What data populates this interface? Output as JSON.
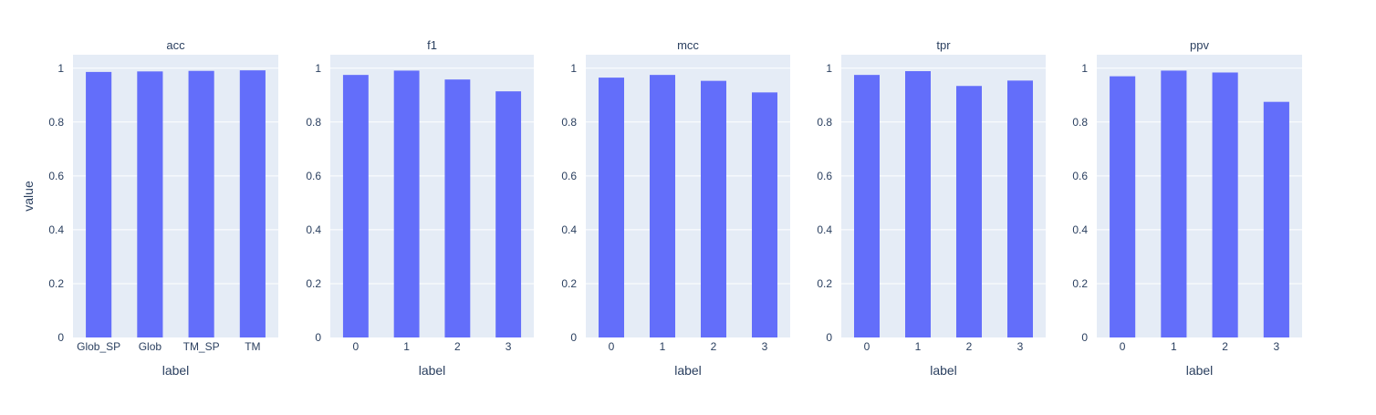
{
  "chart_data": {
    "type": "bar",
    "ylabel": "value",
    "bar_color": "#636efa",
    "plot_bg_color": "#e5ecf6",
    "grid": true,
    "ylim": [
      0,
      1
    ],
    "yticks": [
      "0",
      "0.2",
      "0.4",
      "0.6",
      "0.8",
      "1"
    ],
    "subplots": [
      {
        "title": "acc",
        "xlabel": "label",
        "categories": [
          "Glob_SP",
          "Glob",
          "TM_SP",
          "TM"
        ],
        "values": [
          0.986,
          0.988,
          0.99,
          0.992
        ]
      },
      {
        "title": "f1",
        "xlabel": "label",
        "categories": [
          "0",
          "1",
          "2",
          "3"
        ],
        "values": [
          0.975,
          0.991,
          0.958,
          0.914
        ]
      },
      {
        "title": "mcc",
        "xlabel": "label",
        "categories": [
          "0",
          "1",
          "2",
          "3"
        ],
        "values": [
          0.965,
          0.975,
          0.953,
          0.91
        ]
      },
      {
        "title": "tpr",
        "xlabel": "label",
        "categories": [
          "0",
          "1",
          "2",
          "3"
        ],
        "values": [
          0.975,
          0.989,
          0.934,
          0.954
        ]
      },
      {
        "title": "ppv",
        "xlabel": "label",
        "categories": [
          "0",
          "1",
          "2",
          "3"
        ],
        "values": [
          0.97,
          0.991,
          0.984,
          0.875
        ]
      }
    ]
  }
}
